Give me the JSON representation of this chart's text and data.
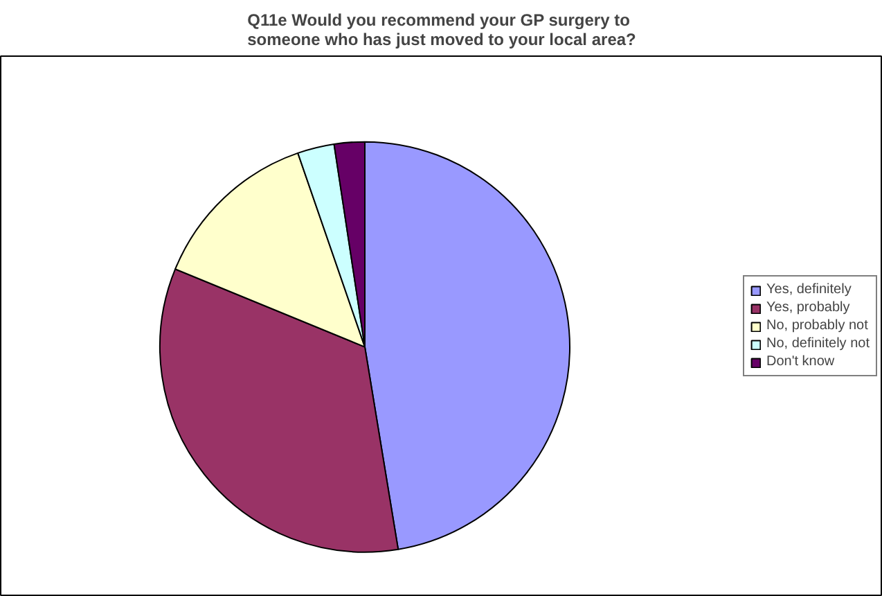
{
  "chart_data": {
    "type": "pie",
    "title": "Q11e Would you recommend your GP surgery to someone who has just moved to your local area?",
    "categories": [
      "Yes, definitely",
      "Yes, probably",
      "No, probably not",
      "No, definitely not",
      "Don't know"
    ],
    "values": [
      47.4,
      33.8,
      13.5,
      2.9,
      2.4
    ],
    "colors": [
      "#9999ff",
      "#993366",
      "#ffffcc",
      "#ccffff",
      "#660066"
    ],
    "legend": "right"
  }
}
